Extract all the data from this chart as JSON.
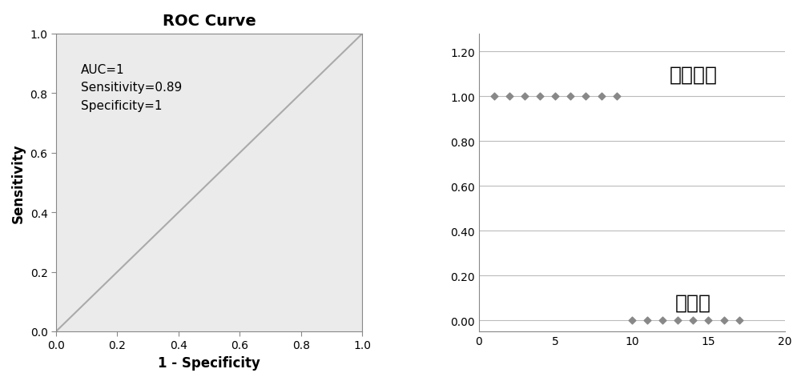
{
  "roc": {
    "title": "ROC Curve",
    "xlabel": "1 - Specificity",
    "ylabel": "Sensitivity",
    "annotation": "AUC=1\nSensitivity=0.89\nSpecificity=1",
    "line_color": "#aaaaaa",
    "bg_color": "#ebebeb",
    "xlim": [
      0.0,
      1.0
    ],
    "ylim": [
      0.0,
      1.0
    ],
    "xticks": [
      0.0,
      0.2,
      0.4,
      0.6,
      0.8,
      1.0
    ],
    "yticks": [
      0.0,
      0.2,
      0.4,
      0.6,
      0.8,
      1.0
    ]
  },
  "scatter": {
    "diabetes_x": [
      1,
      2,
      3,
      4,
      5,
      6,
      7,
      8,
      9
    ],
    "diabetes_y": [
      1.0,
      1.0,
      1.0,
      1.0,
      1.0,
      1.0,
      1.0,
      1.0,
      1.0
    ],
    "normal_x": [
      10,
      11,
      12,
      13,
      14,
      15,
      16,
      17
    ],
    "normal_y": [
      0.0,
      0.0,
      0.0,
      0.0,
      0.0,
      0.0,
      0.0,
      0.0
    ],
    "marker_color": "#888888",
    "label_diabetes": "糖尿病组",
    "label_normal": "正常组",
    "xlim": [
      0,
      20
    ],
    "ylim": [
      -0.05,
      1.28
    ],
    "xticks": [
      0,
      5,
      10,
      15,
      20
    ],
    "yticks": [
      0.0,
      0.2,
      0.4,
      0.6,
      0.8,
      1.0,
      1.2
    ],
    "ytick_labels": [
      "0.00",
      "0.20",
      "0.40",
      "0.60",
      "0.80",
      "1.00",
      "1.20"
    ]
  }
}
